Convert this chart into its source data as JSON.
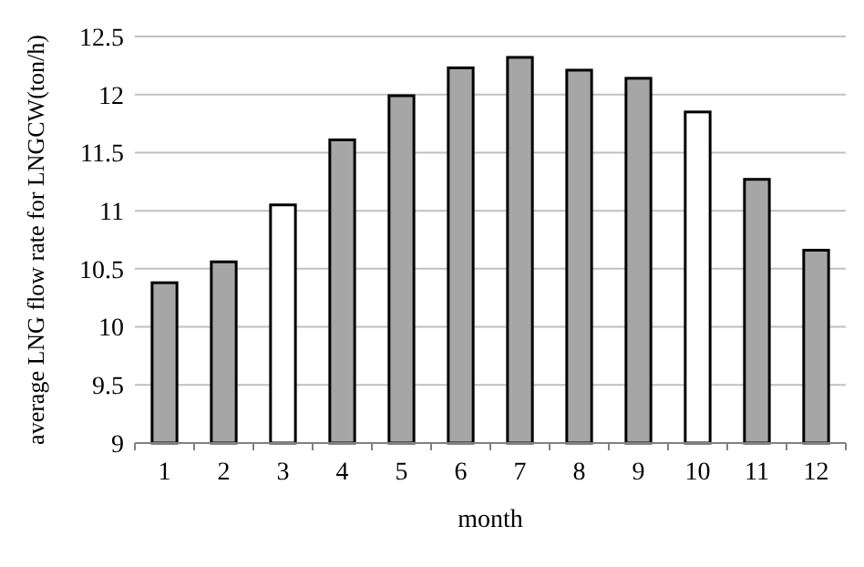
{
  "chart_data": {
    "type": "bar",
    "xlabel": "month",
    "ylabel": "average LNG flow rate for LNGCW(ton/h)",
    "categories": [
      "1",
      "2",
      "3",
      "4",
      "5",
      "6",
      "7",
      "8",
      "9",
      "10",
      "11",
      "12"
    ],
    "values": [
      10.38,
      10.56,
      11.05,
      11.61,
      11.99,
      12.23,
      12.32,
      12.21,
      12.14,
      11.85,
      11.27,
      10.66
    ],
    "colors": [
      "#a6a6a6",
      "#a6a6a6",
      "#ffffff",
      "#a6a6a6",
      "#a6a6a6",
      "#a6a6a6",
      "#a6a6a6",
      "#a6a6a6",
      "#a6a6a6",
      "#ffffff",
      "#a6a6a6",
      "#a6a6a6"
    ],
    "ylim": [
      9,
      12.5
    ],
    "yticks": [
      9,
      9.5,
      10,
      10.5,
      11,
      11.5,
      12,
      12.5
    ],
    "grid": "y"
  }
}
